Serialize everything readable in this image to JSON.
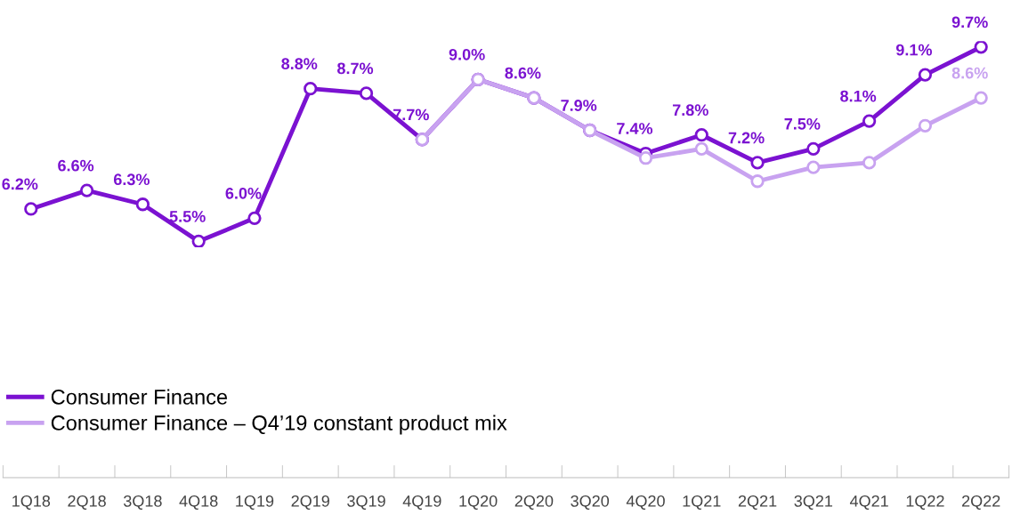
{
  "chart_data": {
    "type": "line",
    "categories": [
      "1Q18",
      "2Q18",
      "3Q18",
      "4Q18",
      "1Q19",
      "2Q19",
      "3Q19",
      "4Q19",
      "1Q20",
      "2Q20",
      "3Q20",
      "4Q20",
      "1Q21",
      "2Q21",
      "3Q21",
      "4Q21",
      "1Q22",
      "2Q22"
    ],
    "series": [
      {
        "name": "Consumer Finance",
        "color": "#7b12d1",
        "values": [
          6.2,
          6.6,
          6.3,
          5.5,
          6.0,
          8.8,
          8.7,
          7.7,
          9.0,
          8.6,
          7.9,
          7.4,
          7.8,
          7.2,
          7.5,
          8.1,
          9.1,
          9.7
        ],
        "value_labels": [
          "6.2%",
          "6.6%",
          "6.3%",
          "5.5%",
          "6.0%",
          "8.8%",
          "8.7%",
          "7.7%",
          "9.0%",
          "8.6%",
          "7.9%",
          "7.4%",
          "7.8%",
          "7.2%",
          "7.5%",
          "8.1%",
          "9.1%",
          "9.7%"
        ]
      },
      {
        "name": "Consumer Finance – Q4’19 constant product mix",
        "color": "#c8a2f0",
        "values": [
          null,
          null,
          null,
          null,
          null,
          null,
          null,
          7.7,
          9.0,
          8.6,
          7.9,
          7.3,
          7.5,
          6.8,
          7.1,
          7.2,
          8.0,
          8.6
        ],
        "value_labels": [
          null,
          null,
          null,
          null,
          null,
          null,
          null,
          null,
          null,
          null,
          null,
          null,
          null,
          null,
          null,
          null,
          null,
          "8.6%"
        ]
      }
    ],
    "marker": "circle",
    "line_style": "solid",
    "legend": "bottom left",
    "tick_labels": "x"
  }
}
